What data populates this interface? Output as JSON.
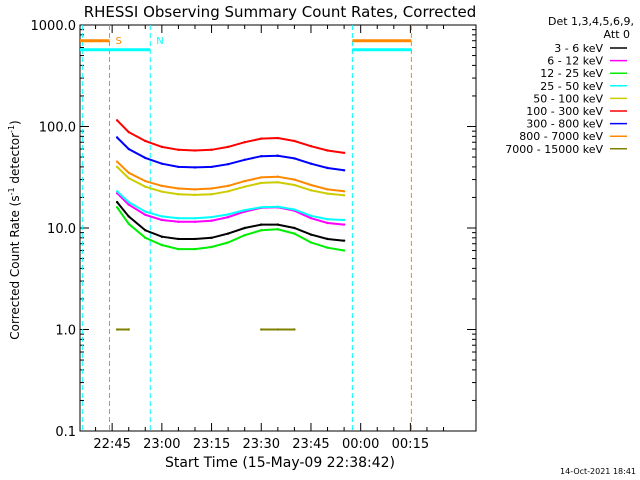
{
  "chart_data": {
    "type": "line",
    "title": "RHESSI Observing Summary Count Rates, Corrected",
    "xlabel": "Start Time (15-May-09 22:38:42)",
    "ylabel_main": "Corrected Count Rate (s",
    "ylabel_sup1": "-1",
    "ylabel_mid": " detector",
    "ylabel_sup2": "-1",
    "ylabel_end": ")",
    "y_scale": "log",
    "ylim": [
      0.1,
      1000
    ],
    "y_ticks": [
      "0.1",
      "1.0",
      "10.0",
      "100.0",
      "1000.0"
    ],
    "xlim_minutes": [
      -9.7,
      109.8
    ],
    "x_ticks": [
      {
        "label": "22:45",
        "min": 0
      },
      {
        "label": "23:00",
        "min": 15
      },
      {
        "label": "23:15",
        "min": 30
      },
      {
        "label": "23:30",
        "min": 45
      },
      {
        "label": "23:45",
        "min": 60
      },
      {
        "label": "00:00",
        "min": 75
      },
      {
        "label": "00:15",
        "min": 90
      }
    ],
    "legend_header": [
      "Det 1,3,4,5,6,9,",
      "Att 0"
    ],
    "legend_placement": "right",
    "x_minutes": [
      1.5,
      5,
      10,
      15,
      20,
      25,
      30,
      35,
      40,
      45,
      50,
      55,
      60,
      65,
      70
    ],
    "series": [
      {
        "name": "3 - 6 keV",
        "color": "#000000",
        "values": [
          18,
          13,
          9.5,
          8.2,
          7.8,
          7.8,
          8.0,
          8.8,
          10.0,
          10.8,
          10.8,
          10.0,
          8.6,
          7.8,
          7.5
        ]
      },
      {
        "name": "6 - 12 keV",
        "color": "#ff00ff",
        "values": [
          22,
          17,
          13.5,
          12.0,
          11.5,
          11.5,
          11.8,
          12.8,
          14.5,
          15.8,
          16.0,
          14.8,
          12.5,
          11.2,
          10.8
        ]
      },
      {
        "name": "12 - 25 keV",
        "color": "#00ee00",
        "values": [
          16,
          11,
          8.0,
          6.8,
          6.2,
          6.2,
          6.5,
          7.2,
          8.5,
          9.5,
          9.7,
          8.8,
          7.2,
          6.4,
          6.0
        ]
      },
      {
        "name": "25 - 50 keV",
        "color": "#00ffff",
        "values": [
          23,
          18,
          14.5,
          13.0,
          12.5,
          12.5,
          12.8,
          13.6,
          15.0,
          16.0,
          16.2,
          15.2,
          13.2,
          12.2,
          12.0
        ]
      },
      {
        "name": "50 - 100 keV",
        "color": "#cccc00",
        "values": [
          40,
          31,
          25.5,
          22.8,
          21.5,
          21.2,
          21.5,
          23.0,
          25.5,
          27.8,
          28.2,
          26.5,
          23.5,
          21.8,
          21.0
        ]
      },
      {
        "name": "100 - 300 keV",
        "color": "#ff0000",
        "values": [
          115,
          88,
          72,
          63,
          59,
          58,
          59,
          63,
          70,
          76,
          77,
          72,
          64,
          58,
          55
        ]
      },
      {
        "name": "300 - 800 keV",
        "color": "#0000ff",
        "values": [
          78,
          60,
          49,
          43,
          40,
          39.5,
          40,
          42.5,
          47,
          51,
          51.5,
          48.5,
          43,
          39,
          37
        ]
      },
      {
        "name": "800 - 7000 keV",
        "color": "#ff8800",
        "values": [
          45,
          35,
          29,
          26,
          24.5,
          24,
          24.5,
          26,
          29,
          31.5,
          32,
          30,
          26.5,
          24,
          23
        ]
      },
      {
        "name": "7000 - 15000 keV",
        "color": "#808000",
        "values": [
          1.0,
          1.0,
          null,
          null,
          null,
          null,
          null,
          null,
          null,
          1.0,
          1.0,
          1.0,
          null,
          null,
          null
        ]
      }
    ],
    "annotations": [
      {
        "label": "S",
        "color": "#ff8800",
        "min": -0.8
      },
      {
        "label": "N",
        "color": "#00ffff",
        "min": 11.5
      }
    ],
    "vertical_markers": [
      {
        "color": "#00ffff",
        "min": -9.0
      },
      {
        "color": "#ff8800",
        "min": -0.8
      },
      {
        "color": "#00ffff",
        "min": 11.5
      },
      {
        "color": "#00ffff",
        "min": 72.5
      },
      {
        "color": "#ff8800",
        "min": 90.3
      }
    ],
    "status_bars": [
      {
        "color": "#ff8800",
        "start": -9.7,
        "end": -0.8,
        "level": 700
      },
      {
        "color": "#00ffff",
        "start": -9.7,
        "end": 11.5,
        "level": 570
      },
      {
        "color": "#ff8800",
        "start": 72.5,
        "end": 90.3,
        "level": 700
      },
      {
        "color": "#00ffff",
        "start": 72.5,
        "end": 90.3,
        "level": 570
      }
    ],
    "footer_date": "14-Oct-2021 18:41"
  }
}
